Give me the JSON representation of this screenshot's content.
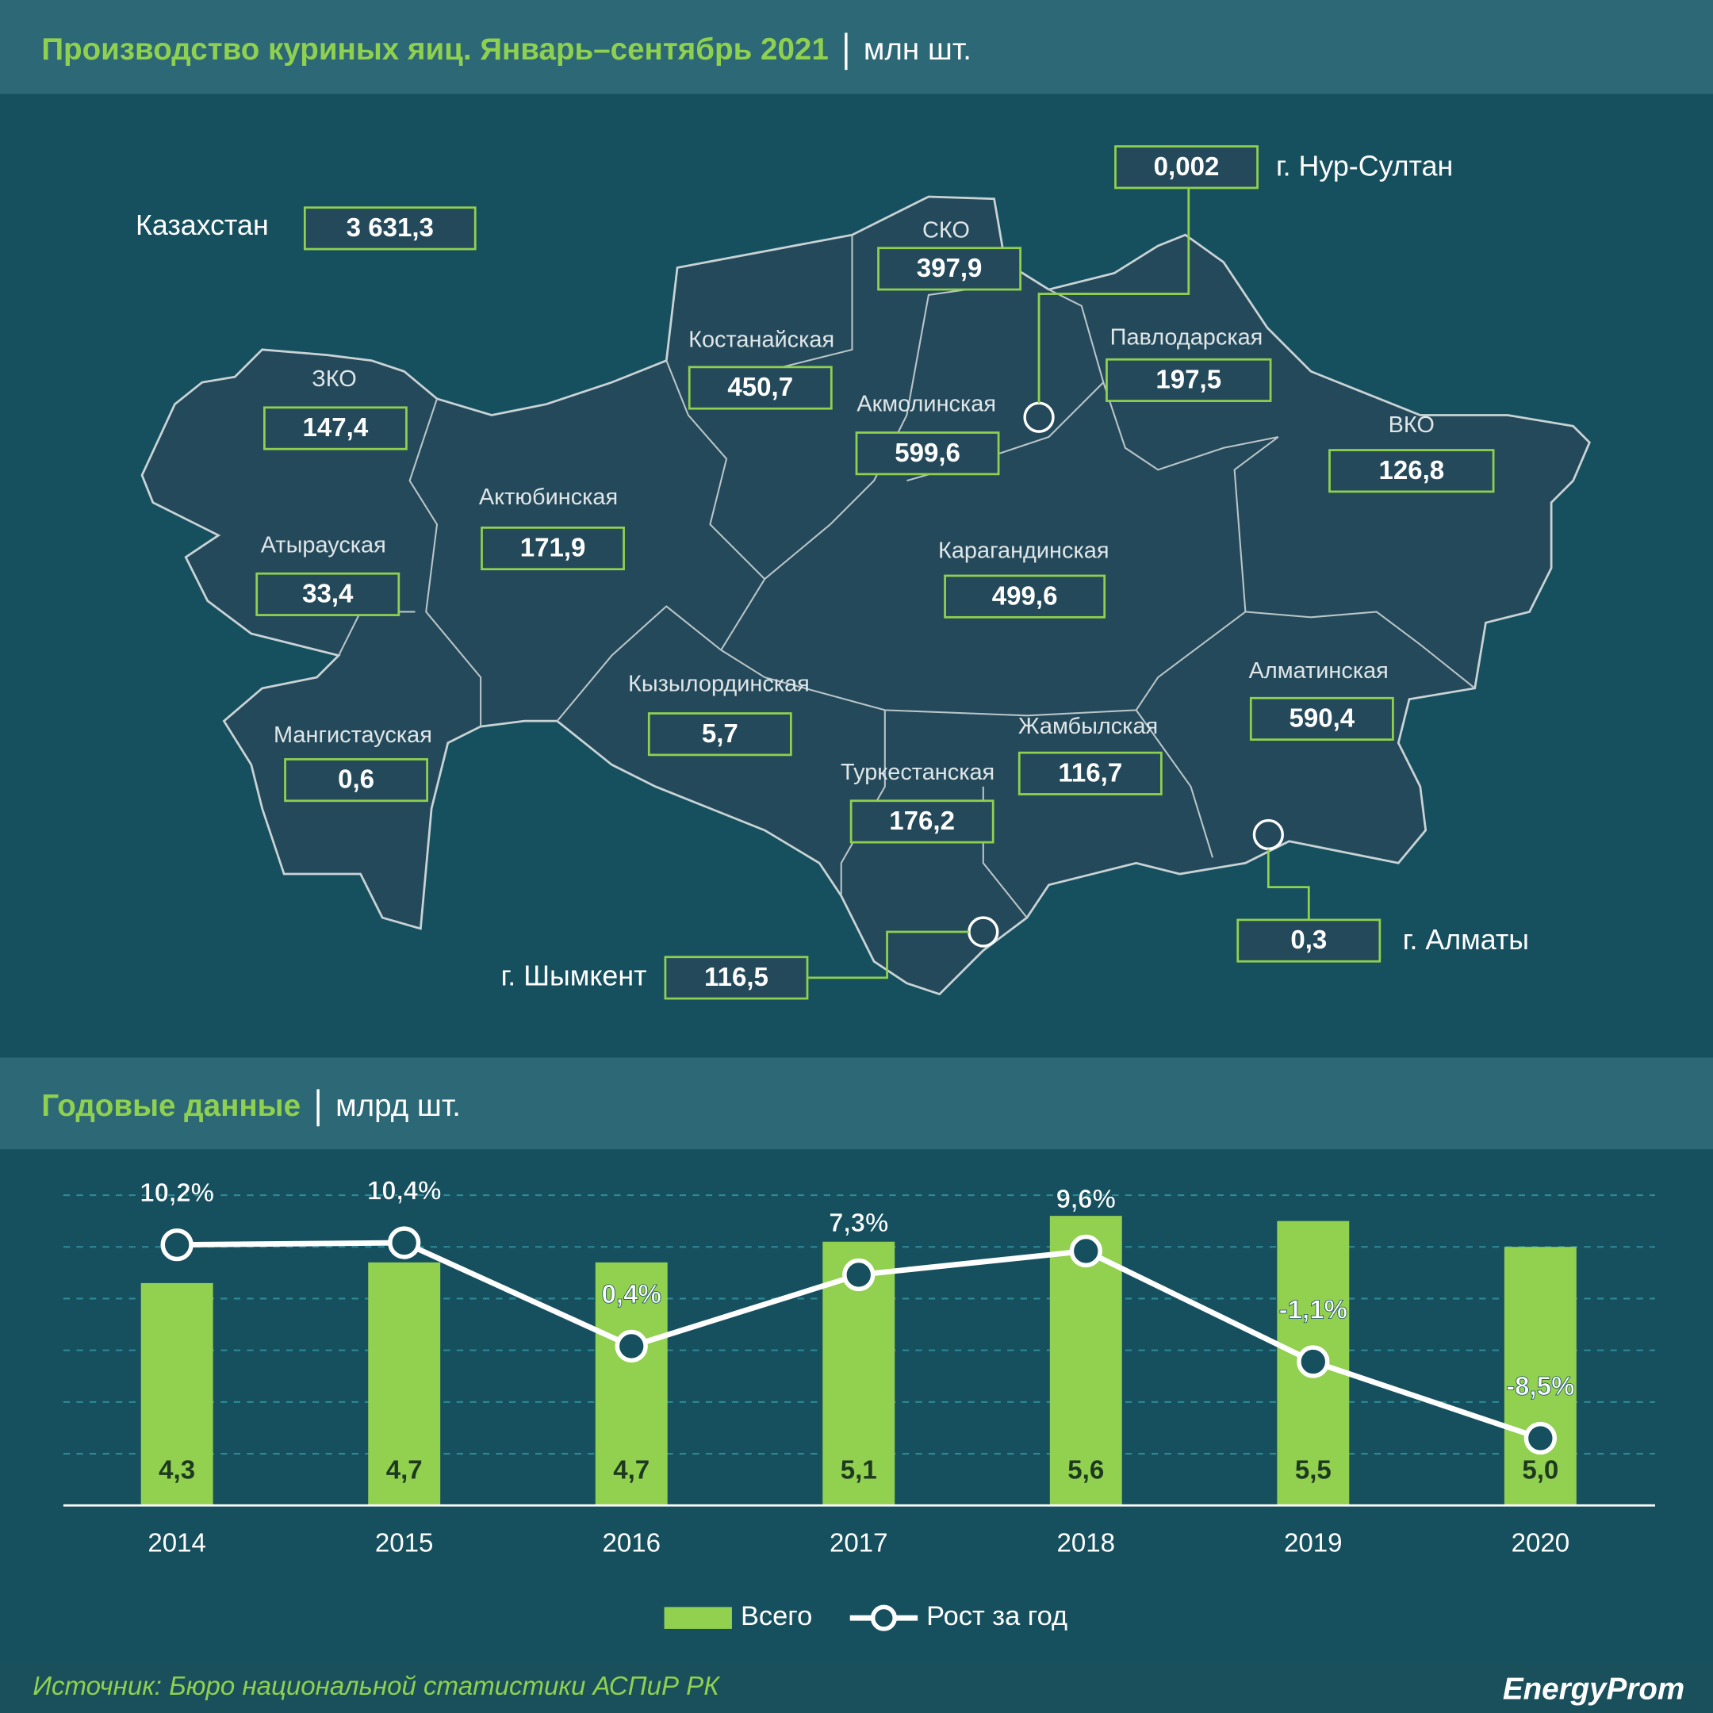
{
  "header": {
    "title": "Производство куриных яиц. Январь–сентябрь 2021",
    "unit": "млн шт."
  },
  "map": {
    "regions": [
      {
        "name": "Казахстан",
        "value": "3 631,3"
      },
      {
        "name": "СКО",
        "value": "397,9"
      },
      {
        "name": "Костанайская",
        "value": "450,7"
      },
      {
        "name": "Акмолинская",
        "value": "599,6"
      },
      {
        "name": "Павлодарская",
        "value": "197,5"
      },
      {
        "name": "ЗКО",
        "value": "147,4"
      },
      {
        "name": "ВКО",
        "value": "126,8"
      },
      {
        "name": "Актюбинская",
        "value": "171,9"
      },
      {
        "name": "Карагандинская",
        "value": "499,6"
      },
      {
        "name": "Атырауская",
        "value": "33,4"
      },
      {
        "name": "Алматинская",
        "value": "590,4"
      },
      {
        "name": "Кызылординская",
        "value": "5,7"
      },
      {
        "name": "Жамбылская",
        "value": "116,7"
      },
      {
        "name": "Мангистауская",
        "value": "0,6"
      },
      {
        "name": "Туркестанская",
        "value": "176,2"
      },
      {
        "name": "г. Нур-Султан",
        "value": "0,002"
      },
      {
        "name": "г. Алматы",
        "value": "0,3"
      },
      {
        "name": "г. Шымкент",
        "value": "116,5"
      }
    ]
  },
  "chart_header": {
    "title": "Годовые данные",
    "unit": "млрд шт."
  },
  "chart_data": {
    "type": "bar",
    "categories": [
      "2014",
      "2015",
      "2016",
      "2017",
      "2018",
      "2019",
      "2020"
    ],
    "series": [
      {
        "name": "Всего",
        "type": "bar",
        "color": "#92d050",
        "values": [
          4.3,
          4.7,
          4.7,
          5.1,
          5.6,
          5.5,
          5.0
        ],
        "value_labels": [
          "4,3",
          "4,7",
          "4,7",
          "5,1",
          "5,6",
          "5,5",
          "5,0"
        ]
      },
      {
        "name": "Рост за год",
        "type": "line",
        "axis": "y2",
        "color": "#ffffff",
        "values": [
          10.2,
          10.4,
          0.4,
          7.3,
          9.6,
          -1.1,
          -8.5
        ],
        "value_labels": [
          "10,2%",
          "10,4%",
          "0,4%",
          "7,3%",
          "9,6%",
          "-1,1%",
          "-8,5%"
        ]
      }
    ],
    "ylim": [
      0,
      6
    ],
    "yticks": [
      1,
      2,
      3,
      4,
      5,
      6
    ],
    "y2lim": [
      -15,
      15
    ],
    "grid": true
  },
  "footer": {
    "source": "Источник: Бюро национальной статистики АСПиР РК",
    "logo": "EnergyProm"
  }
}
